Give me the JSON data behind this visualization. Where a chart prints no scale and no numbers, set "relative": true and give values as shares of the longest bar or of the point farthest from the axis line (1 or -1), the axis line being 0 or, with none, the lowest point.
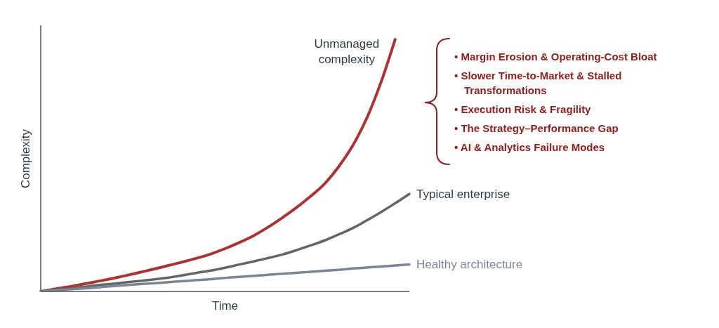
{
  "chart_data": {
    "type": "line",
    "xlabel": "Time",
    "ylabel": "Complexity",
    "relative": true,
    "categories": [
      null,
      null,
      null,
      null,
      null,
      null,
      null,
      null,
      null,
      null,
      null,
      null,
      null,
      null,
      null,
      null,
      null,
      null,
      null,
      null,
      null,
      null,
      null,
      null,
      null,
      null,
      null
    ],
    "series": [
      {
        "name": "Unmanaged complexity",
        "color": "#a83434",
        "values": [
          0,
          0.01,
          0.019,
          0.029,
          0.04,
          0.051,
          0.063,
          0.076,
          0.089,
          0.103,
          0.117,
          0.132,
          0.149,
          0.17,
          0.194,
          0.221,
          0.254,
          0.291,
          0.331,
          0.376,
          0.426,
          0.494,
          0.578,
          0.688,
          0.83,
          1,
          null
        ]
      },
      {
        "name": "Typical enterprise",
        "color": "#636567",
        "values": [
          0,
          0.006,
          0.012,
          0.018,
          0.025,
          0.03,
          0.036,
          0.042,
          0.048,
          0.055,
          0.064,
          0.074,
          0.083,
          0.094,
          0.107,
          0.119,
          0.132,
          0.146,
          0.163,
          0.182,
          0.202,
          0.226,
          0.251,
          0.282,
          0.315,
          0.35,
          0.387
        ]
      },
      {
        "name": "Healthy architecture",
        "color": "#7b8595",
        "values": [
          0,
          0.004,
          0.008,
          0.012,
          0.016,
          0.021,
          0.025,
          0.029,
          0.033,
          0.037,
          0.041,
          0.045,
          0.049,
          0.054,
          0.058,
          0.062,
          0.066,
          0.07,
          0.074,
          0.078,
          0.082,
          0.086,
          0.091,
          0.095,
          0.099,
          0.103,
          0.107
        ]
      }
    ],
    "annotations": [
      "• Margin Erosion & Operating-Cost Bloat",
      "• Slower Time-to-Market & Stalled Transformations",
      "• Execution Risk & Fragility",
      "• The Strategy–Performance Gap",
      "• AI & Analytics Failure Modes"
    ]
  }
}
